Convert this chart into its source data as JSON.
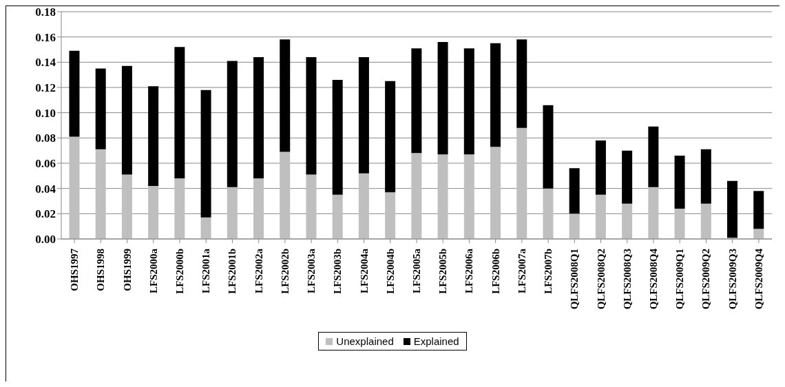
{
  "chart_data": {
    "type": "bar",
    "stacked": true,
    "categories": [
      "OHS1997",
      "OHS1998",
      "OHS1999",
      "LFS2000a",
      "LFS2000b",
      "LFS2001a",
      "LFS2001b",
      "LFS2002a",
      "LFS2002b",
      "LFS2003a",
      "LFS2003b",
      "LFS2004a",
      "LFS2004b",
      "LFS2005a",
      "LFS2005b",
      "LFS2006a",
      "LFS2006b",
      "LFS2007a",
      "LFS2007b",
      "QLFS2008Q1",
      "QLFS2008Q2",
      "QLFS2008Q3",
      "QLFS2008Q4",
      "QLFS2009Q1",
      "QLFS2009Q2",
      "QLFS2009Q3",
      "QLFS2009Q4"
    ],
    "series": [
      {
        "name": "Unexplained",
        "color": "#bfbfbf",
        "values": [
          0.081,
          0.071,
          0.051,
          0.042,
          0.048,
          0.017,
          0.041,
          0.048,
          0.069,
          0.051,
          0.035,
          0.052,
          0.037,
          0.068,
          0.067,
          0.067,
          0.073,
          0.088,
          0.04,
          0.02,
          0.035,
          0.028,
          0.041,
          0.024,
          0.028,
          0.001,
          0.008
        ]
      },
      {
        "name": "Explained",
        "color": "#000000",
        "values": [
          0.068,
          0.064,
          0.086,
          0.079,
          0.104,
          0.101,
          0.1,
          0.096,
          0.089,
          0.093,
          0.091,
          0.092,
          0.088,
          0.083,
          0.089,
          0.084,
          0.082,
          0.07,
          0.066,
          0.036,
          0.043,
          0.042,
          0.048,
          0.042,
          0.043,
          0.045,
          0.03
        ]
      }
    ],
    "ylim": [
      0,
      0.18
    ],
    "yticks": [
      {
        "value": 0,
        "label": "0.00"
      },
      {
        "value": 0.02,
        "label": "0.02"
      },
      {
        "value": 0.04,
        "label": "0.04"
      },
      {
        "value": 0.06,
        "label": "0.06"
      },
      {
        "value": 0.08,
        "label": "0.08"
      },
      {
        "value": 0.1,
        "label": "0.10"
      },
      {
        "value": 0.12,
        "label": "0.12"
      },
      {
        "value": 0.14,
        "label": "0.14"
      },
      {
        "value": 0.16,
        "label": "0.16"
      },
      {
        "value": 0.18,
        "label": "0.18"
      }
    ],
    "grid": "y",
    "legend": "bottom"
  }
}
